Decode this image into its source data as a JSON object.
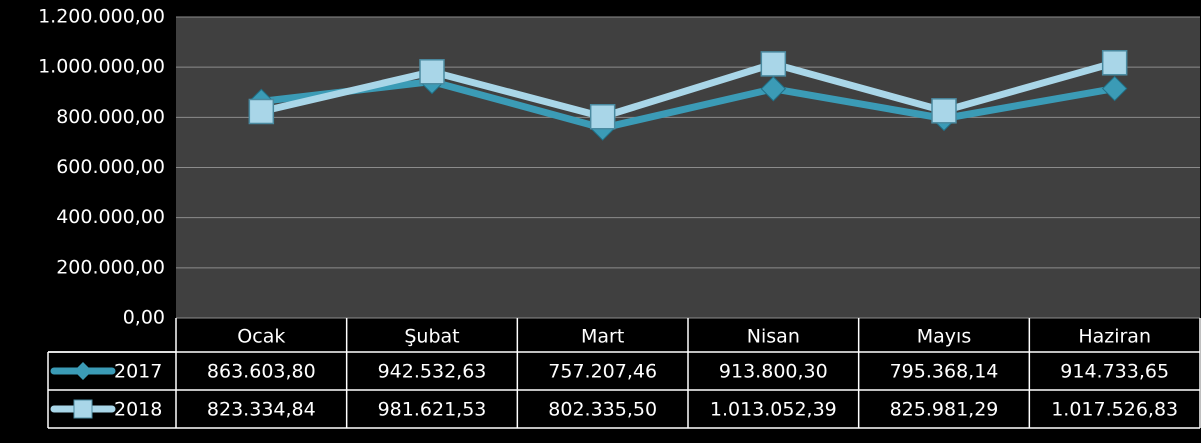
{
  "chart_data": {
    "type": "line",
    "categories": [
      "Ocak",
      "Şubat",
      "Mart",
      "Nisan",
      "Mayıs",
      "Haziran"
    ],
    "series": [
      {
        "name": "2017",
        "color": "#3b9bb6",
        "marker": "diamond",
        "values": [
          863603.8,
          942532.63,
          757207.46,
          913800.3,
          795368.14,
          914733.65
        ],
        "value_labels": [
          "863.603,80",
          "942.532,63",
          "757.207,46",
          "913.800,30",
          "795.368,14",
          "914.733,65"
        ]
      },
      {
        "name": "2018",
        "color": "#a9d6e8",
        "marker": "square",
        "values": [
          823334.84,
          981621.53,
          802335.5,
          1013052.39,
          825981.29,
          1017526.83
        ],
        "value_labels": [
          "823.334,84",
          "981.621,53",
          "802.335,50",
          "1.013.052,39",
          "825.981,29",
          "1.017.526,83"
        ]
      }
    ],
    "ylim": [
      0,
      1200000
    ],
    "yticks": [
      {
        "value": 0,
        "label": "0,00"
      },
      {
        "value": 200000,
        "label": "200.000,00"
      },
      {
        "value": 400000,
        "label": "400.000,00"
      },
      {
        "value": 600000,
        "label": "600.000,00"
      },
      {
        "value": 800000,
        "label": "800.000,00"
      },
      {
        "value": 1000000,
        "label": "1.000.000,00"
      },
      {
        "value": 1200000,
        "label": "1.200.000,00"
      }
    ],
    "grid": true
  }
}
